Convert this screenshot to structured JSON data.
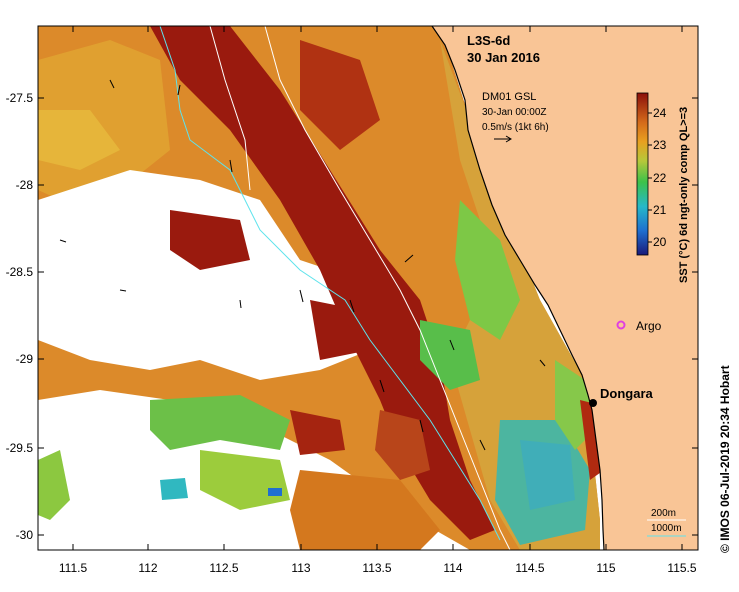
{
  "map": {
    "product": "L3S-6d",
    "date": "30 Jan 2016",
    "current_source": "DM01 GSL",
    "current_time": "30-Jan 00:00Z",
    "current_scale": "0.5m/s (1kt 6h)",
    "x_ticks": [
      "111.5",
      "112",
      "112.5",
      "113",
      "113.5",
      "114",
      "114.5",
      "115",
      "115.5"
    ],
    "y_ticks": [
      "-27.5",
      "-28",
      "-28.5",
      "-29",
      "-29.5",
      "-30"
    ],
    "colorbar_ticks": [
      "24",
      "23",
      "22",
      "21",
      "20"
    ],
    "colorbar_label": "SST (°C) 6d ngt-only comp QL>=3",
    "argo_label": "Argo",
    "place_label": "Dongara",
    "contour_200_label": "200m",
    "contour_1000_label": "1000m",
    "credit": "© IMOS 06-Jul-2019 20:34 Hobart",
    "land_color": "#f9c596",
    "contour_1000_color": "#5ee3ec",
    "argo_color": "#e040e0"
  }
}
